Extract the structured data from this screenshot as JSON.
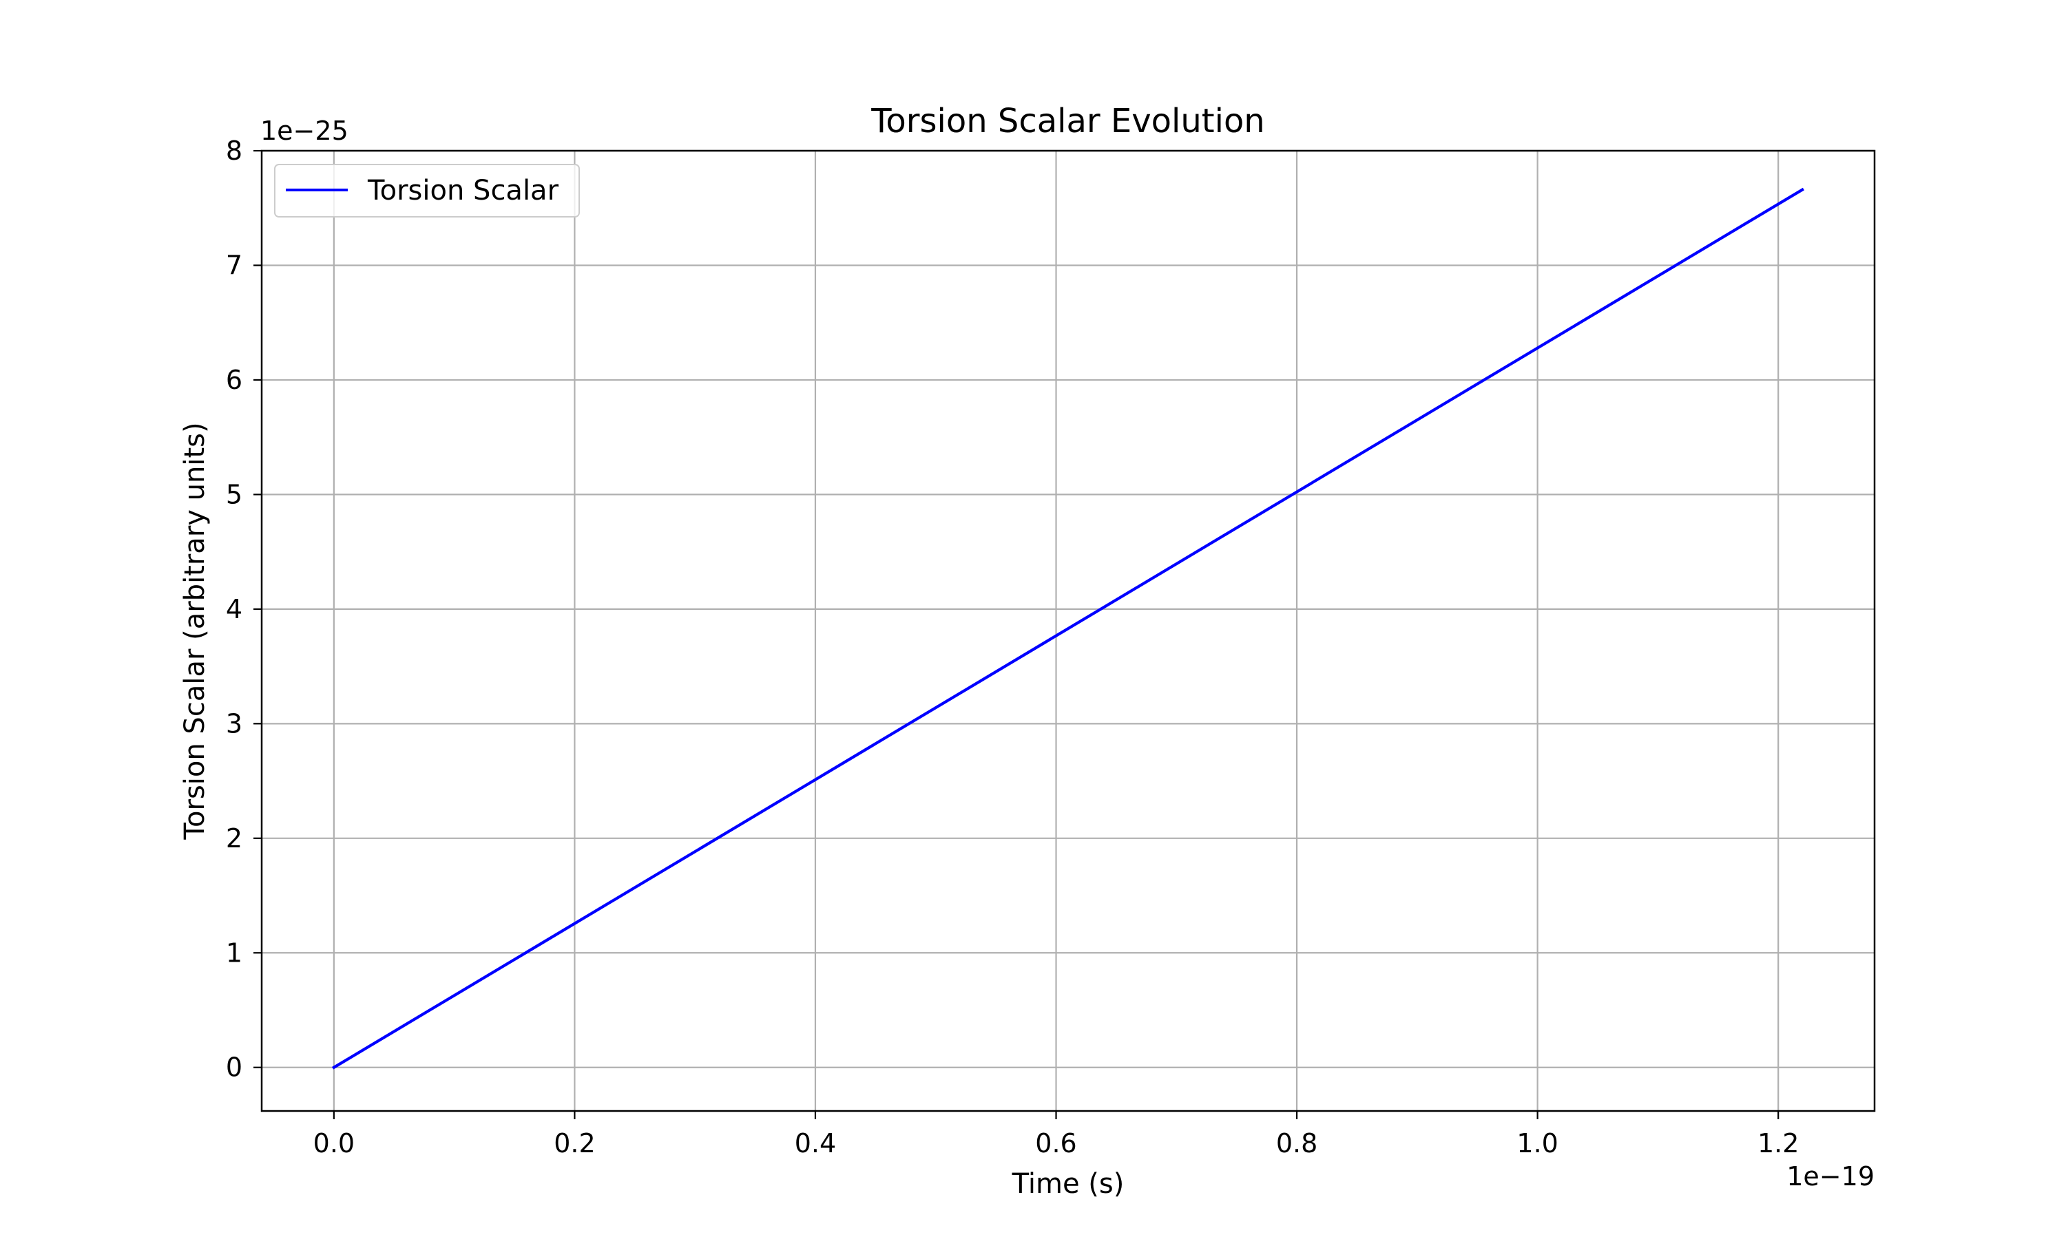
{
  "chart_data": {
    "type": "line",
    "title": "Torsion Scalar Evolution",
    "xlabel": "Time (s)",
    "ylabel": "Torsion Scalar (arbitrary units)",
    "x_offset_label": "1e−19",
    "y_offset_label": "1e−25",
    "xlim": [
      -0.06,
      1.28
    ],
    "ylim": [
      -0.38,
      8.0
    ],
    "xticks": [
      0.0,
      0.2,
      0.4,
      0.6,
      0.8,
      1.0,
      1.2
    ],
    "xtick_labels": [
      "0.0",
      "0.2",
      "0.4",
      "0.6",
      "0.8",
      "1.0",
      "1.2"
    ],
    "yticks": [
      0,
      1,
      2,
      3,
      4,
      5,
      6,
      7,
      8
    ],
    "ytick_labels": [
      "0",
      "1",
      "2",
      "3",
      "4",
      "5",
      "6",
      "7",
      "8"
    ],
    "grid": true,
    "legend_position": "top-left",
    "series": [
      {
        "name": "Torsion Scalar",
        "color": "#0000ff",
        "x": [
          0.0,
          0.61,
          1.22
        ],
        "y": [
          0.0,
          3.83,
          7.66
        ]
      }
    ]
  }
}
